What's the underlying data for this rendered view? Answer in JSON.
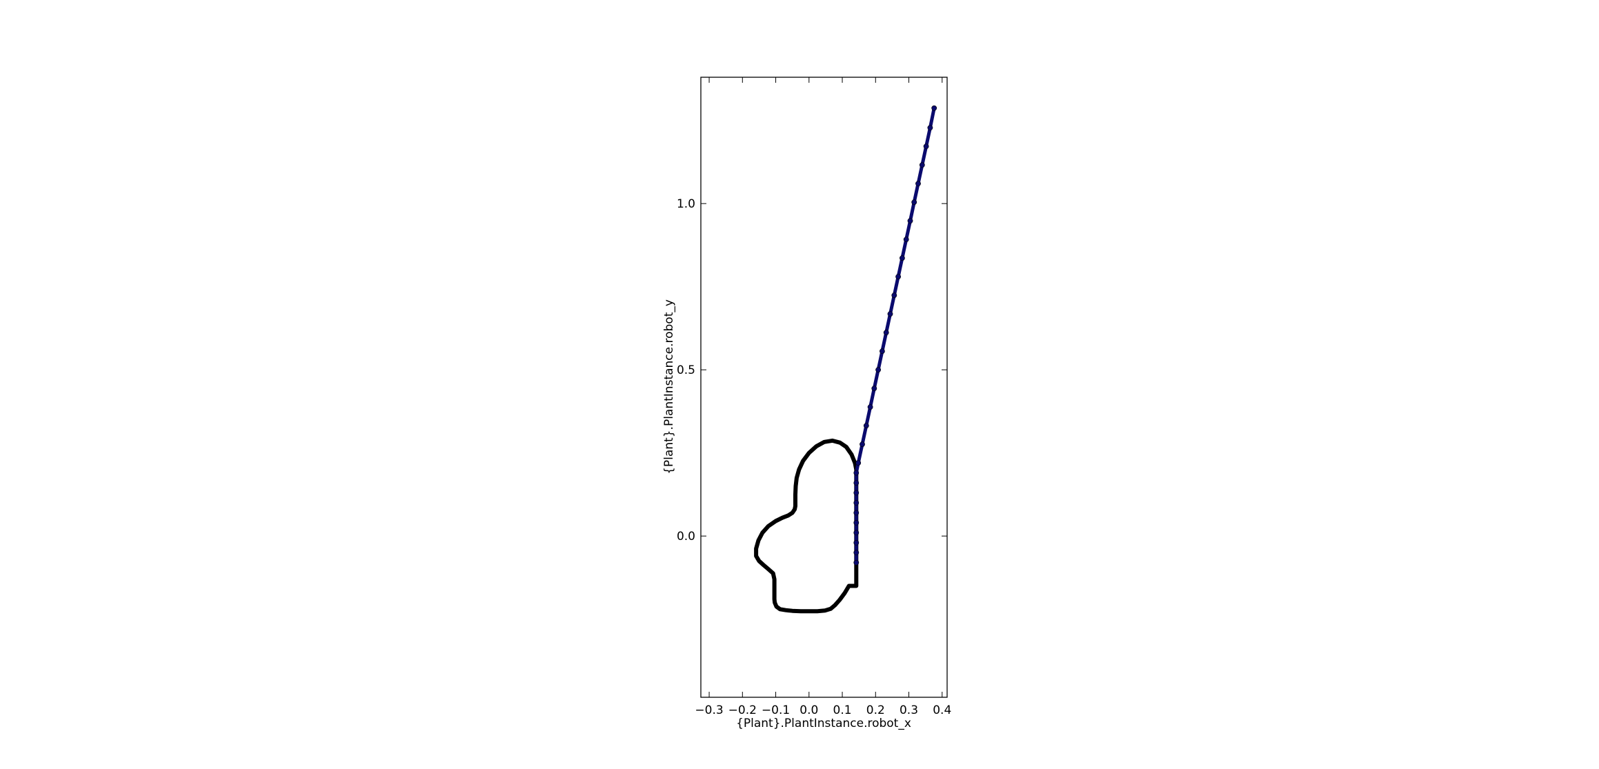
{
  "chart_data": {
    "type": "line",
    "title": "",
    "xlabel": "{Plant}.PlantInstance.robot_x",
    "ylabel": "{Plant}.PlantInstance.robot_y",
    "xlim": [
      -0.325,
      0.415
    ],
    "ylim": [
      -0.485,
      1.38
    ],
    "xticks": [
      -0.3,
      -0.2,
      -0.1,
      0.0,
      0.1,
      0.2,
      0.3,
      0.4
    ],
    "xtick_labels": [
      "−0.3",
      "−0.2",
      "−0.1",
      "0.0",
      "0.1",
      "0.2",
      "0.3",
      "0.4"
    ],
    "yticks": [
      0.0,
      0.5,
      1.0
    ],
    "ytick_labels": [
      "0.0",
      "0.5",
      "1.0"
    ],
    "grid": false,
    "legend": "none",
    "series": [
      {
        "color": "#000000",
        "style": "line",
        "x": [
          0.142,
          0.142,
          0.142,
          0.138,
          0.128,
          0.112,
          0.093,
          0.07,
          0.046,
          0.022,
          0.0,
          -0.018,
          -0.03,
          -0.037,
          -0.04,
          -0.041,
          -0.041,
          -0.041,
          -0.043,
          -0.05,
          -0.062,
          -0.08,
          -0.1,
          -0.122,
          -0.14,
          -0.152,
          -0.159,
          -0.159,
          -0.15,
          -0.137,
          -0.123,
          -0.108,
          -0.104,
          -0.104,
          -0.104,
          -0.103,
          -0.098,
          -0.087,
          -0.07,
          -0.05,
          -0.025,
          0.0,
          0.025,
          0.048,
          0.065,
          0.078,
          0.092,
          0.107,
          0.12,
          0.142,
          0.142,
          0.142
        ],
        "y": [
          0.0,
          0.1,
          0.2,
          0.22,
          0.245,
          0.268,
          0.281,
          0.287,
          0.283,
          0.27,
          0.25,
          0.226,
          0.2,
          0.175,
          0.15,
          0.125,
          0.1,
          0.09,
          0.08,
          0.07,
          0.062,
          0.055,
          0.045,
          0.03,
          0.01,
          -0.013,
          -0.038,
          -0.06,
          -0.075,
          -0.087,
          -0.099,
          -0.112,
          -0.13,
          -0.16,
          -0.19,
          -0.2,
          -0.212,
          -0.22,
          -0.223,
          -0.225,
          -0.226,
          -0.226,
          -0.226,
          -0.224,
          -0.219,
          -0.208,
          -0.192,
          -0.172,
          -0.15,
          -0.15,
          -0.1,
          0.0
        ]
      },
      {
        "color": "#0a0a6e",
        "style": "markers",
        "x": [
          0.142,
          0.142,
          0.142,
          0.142,
          0.142,
          0.142,
          0.142,
          0.142,
          0.142,
          0.142,
          0.148,
          0.16,
          0.172,
          0.184,
          0.196,
          0.208,
          0.22,
          0.232,
          0.244,
          0.256,
          0.268,
          0.28,
          0.292,
          0.304,
          0.316,
          0.328,
          0.34,
          0.352,
          0.364,
          0.376
        ],
        "y": [
          -0.08,
          -0.05,
          -0.02,
          0.01,
          0.04,
          0.07,
          0.1,
          0.13,
          0.16,
          0.19,
          0.22,
          0.276,
          0.332,
          0.388,
          0.444,
          0.5,
          0.556,
          0.612,
          0.668,
          0.724,
          0.78,
          0.836,
          0.892,
          0.948,
          1.004,
          1.06,
          1.116,
          1.172,
          1.228,
          1.287
        ]
      }
    ]
  }
}
